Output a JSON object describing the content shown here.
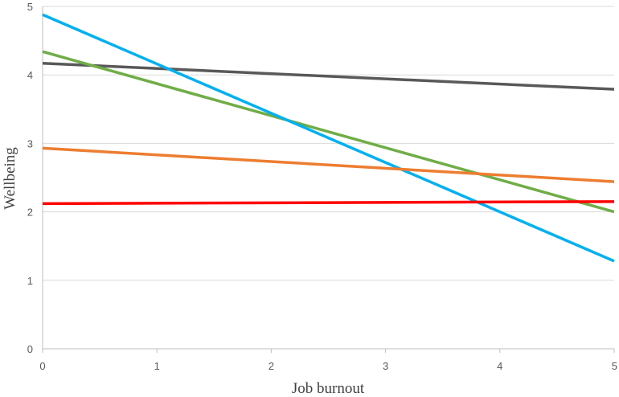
{
  "chart_data": {
    "type": "line",
    "xlabel": "Job burnout",
    "ylabel": "Wellbeing",
    "xlim": [
      0,
      5
    ],
    "ylim": [
      0,
      5
    ],
    "x_ticks": [
      "0",
      "1",
      "2",
      "3",
      "4",
      "5"
    ],
    "y_ticks": [
      "0",
      "1",
      "2",
      "3",
      "4",
      "5"
    ],
    "grid": "horizontal",
    "legend": "none",
    "series": [
      {
        "color": "#595959",
        "x": [
          0,
          5
        ],
        "y": [
          4.17,
          3.79
        ]
      },
      {
        "color": "#70ad47",
        "x": [
          0,
          5
        ],
        "y": [
          4.34,
          2.0
        ]
      },
      {
        "color": "#00b0f0",
        "x": [
          0,
          5
        ],
        "y": [
          4.88,
          1.28
        ]
      },
      {
        "color": "#ed7d31",
        "x": [
          0,
          5
        ],
        "y": [
          2.93,
          2.44
        ]
      },
      {
        "color": "#ff0000",
        "x": [
          0,
          5
        ],
        "y": [
          2.12,
          2.15
        ]
      }
    ]
  }
}
